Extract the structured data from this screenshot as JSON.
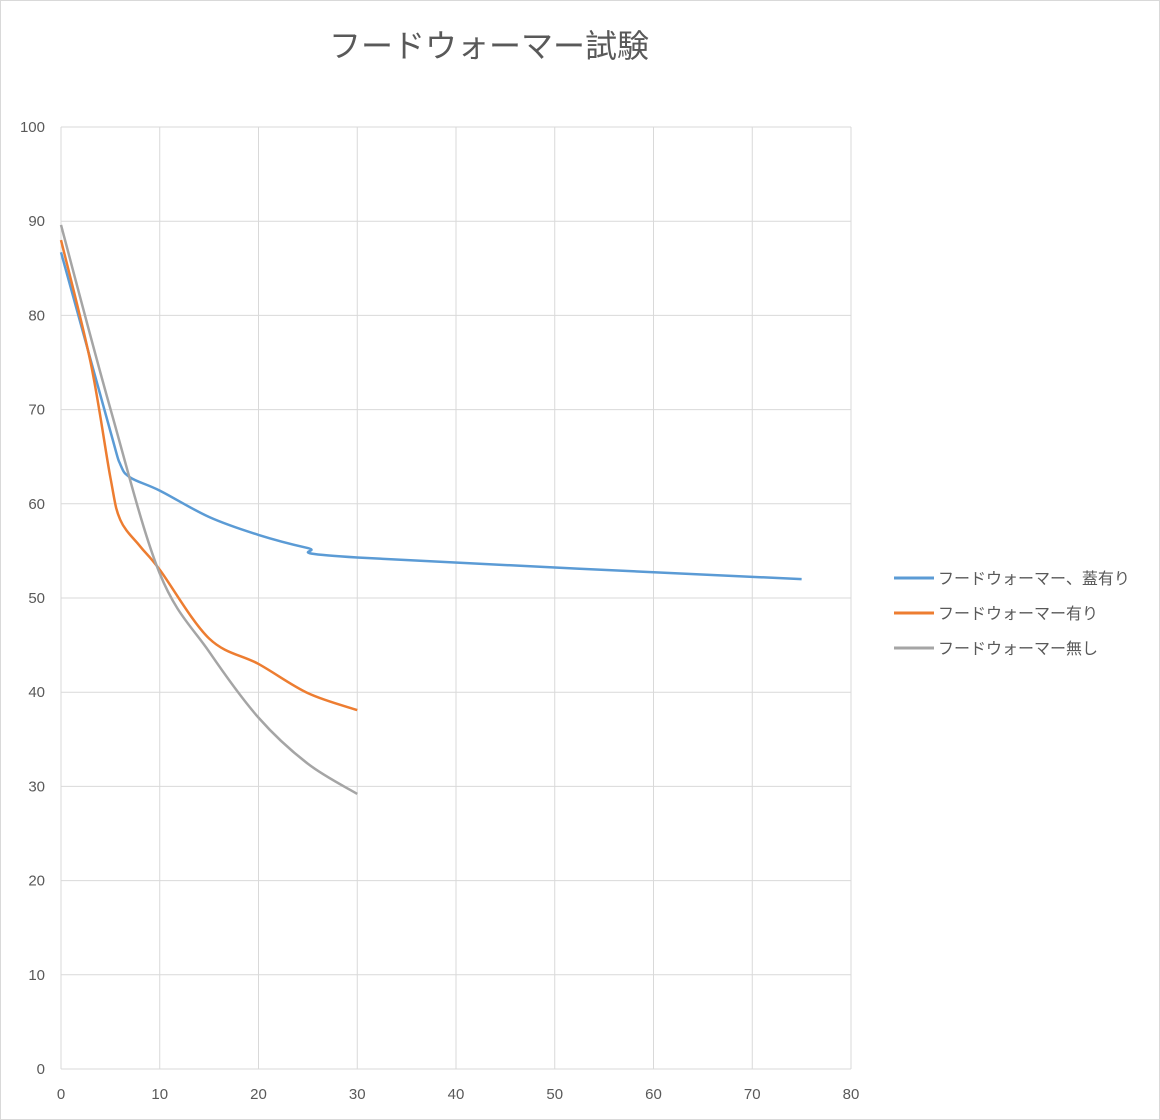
{
  "chart_data": {
    "type": "line",
    "title": "フードウォーマー試験",
    "xlabel": "",
    "ylabel": "",
    "xlim": [
      0,
      80
    ],
    "ylim": [
      0,
      100
    ],
    "xticks": [
      "0",
      "10",
      "20",
      "30",
      "40",
      "50",
      "60",
      "70",
      "80"
    ],
    "yticks": [
      "0",
      "10",
      "20",
      "30",
      "40",
      "50",
      "60",
      "70",
      "80",
      "90",
      "100"
    ],
    "grid": true,
    "legend_position": "right",
    "smooth": true,
    "series": [
      {
        "name": "フードウォーマー、蓋有り",
        "color": "#5B9BD5",
        "x": [
          0,
          5,
          6,
          7,
          10,
          15,
          20,
          25,
          30,
          75
        ],
        "y": [
          86.7,
          67.7,
          64.2,
          62.8,
          61.4,
          58.6,
          56.7,
          55.3,
          54.3,
          52.0
        ]
      },
      {
        "name": "フードウォーマー有り",
        "color": "#ED7D31",
        "x": [
          0,
          3,
          5,
          6,
          8,
          10,
          15,
          20,
          25,
          30
        ],
        "y": [
          88.0,
          75.0,
          62.8,
          58.3,
          55.5,
          53.0,
          45.7,
          43.0,
          39.9,
          38.1
        ]
      },
      {
        "name": "フードウォーマー無し",
        "color": "#A5A5A5",
        "x": [
          0,
          5,
          10,
          15,
          20,
          25,
          30
        ],
        "y": [
          89.6,
          70.1,
          52.6,
          44.3,
          37.3,
          32.4,
          29.2
        ]
      }
    ]
  }
}
